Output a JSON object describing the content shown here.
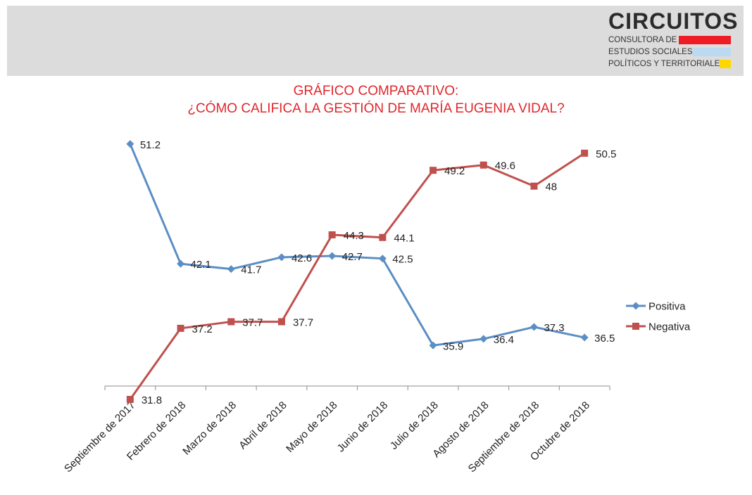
{
  "header": {
    "logo": {
      "title": "CIRCUITOS",
      "lines": [
        "CONSULTORA DE",
        "ESTUDIOS SOCIALES,",
        "POLÍTICOS Y TERRITORIALES"
      ],
      "bar_colors": [
        "#ee1c24",
        "#bcd9f2",
        "#ffd700"
      ]
    }
  },
  "chart_data": {
    "type": "line",
    "title": "GRÁFICO COMPARATIVO:",
    "subtitle": "¿CÓMO CALIFICA LA GESTIÓN DE MARÍA EUGENIA VIDAL?",
    "xlabel": "",
    "ylabel": "",
    "ylim": [
      20,
      60
    ],
    "grid": false,
    "legend_position": "right",
    "categories": [
      "Septiembre de 2017",
      "Febrero de 2018",
      "Marzo de 2018",
      "Abril de 2018",
      "Mayo de 2018",
      "Junio de 2018",
      "Julio de 2018",
      "Agosto de 2018",
      "Septiembre de 2018",
      "Octubre de 2018"
    ],
    "series": [
      {
        "name": "Positiva",
        "color": "#5b8ec4",
        "marker": "diamond",
        "values": [
          51.2,
          42.1,
          41.7,
          42.6,
          42.7,
          42.5,
          35.9,
          36.4,
          37.3,
          36.5
        ]
      },
      {
        "name": "Negativa",
        "color": "#c0504d",
        "marker": "square",
        "values": [
          31.8,
          37.2,
          37.7,
          37.7,
          44.3,
          44.1,
          49.2,
          49.6,
          48,
          50.5
        ]
      }
    ]
  }
}
